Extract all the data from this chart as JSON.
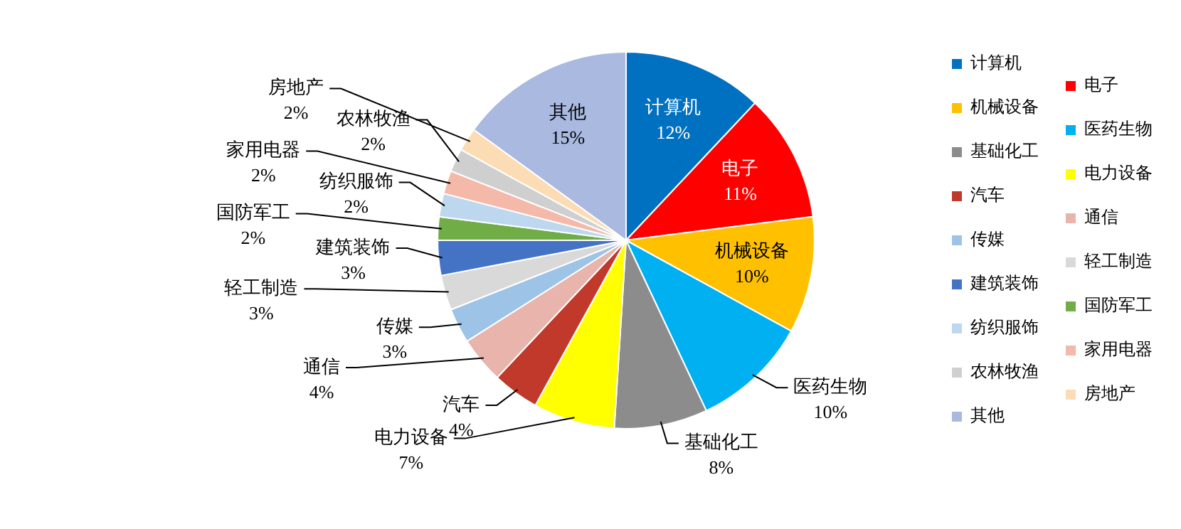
{
  "chart_data": {
    "type": "pie",
    "categories": [
      "计算机",
      "电子",
      "机械设备",
      "医药生物",
      "基础化工",
      "电力设备",
      "汽车",
      "通信",
      "传媒",
      "轻工制造",
      "建筑装饰",
      "国防军工",
      "纺织服饰",
      "家用电器",
      "农林牧渔",
      "房地产",
      "其他"
    ],
    "values": [
      12,
      11,
      10,
      10,
      8,
      7,
      4,
      4,
      3,
      3,
      3,
      2,
      2,
      2,
      2,
      2,
      15
    ],
    "value_labels": [
      "12%",
      "11%",
      "10%",
      "10%",
      "8%",
      "7%",
      "4%",
      "4%",
      "3%",
      "3%",
      "3%",
      "2%",
      "2%",
      "2%",
      "2%",
      "2%",
      "15%"
    ],
    "colors": [
      "#0070c0",
      "#ff0000",
      "#ffc000",
      "#00b0f0",
      "#8c8c8c",
      "#ffff00",
      "#c0392b",
      "#e8b4ac",
      "#9dc3e6",
      "#d9d9d9",
      "#4472c4",
      "#70ad47",
      "#bdd7ee",
      "#f4b9a8",
      "#cfcfcf",
      "#fcdcb4",
      "#a9b9df"
    ],
    "legend": "right"
  }
}
